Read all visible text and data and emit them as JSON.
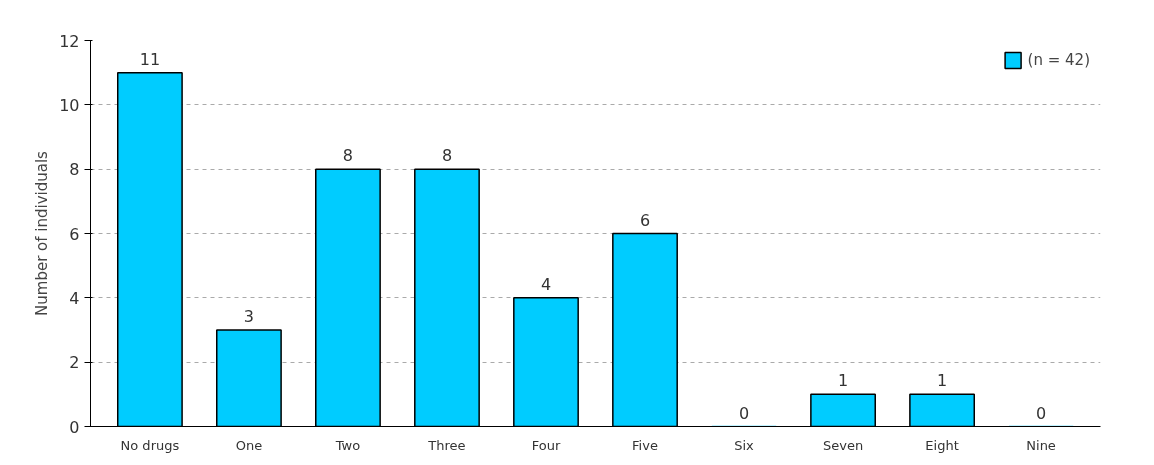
{
  "chart_data": {
    "type": "bar",
    "ylabel": "Number of individuals",
    "categories": [
      "No drugs",
      "One",
      "Two",
      "Three",
      "Four",
      "Five",
      "Six",
      "Seven",
      "Eight",
      "Nine"
    ],
    "series": [
      {
        "name": "(n = 42)",
        "color": "#00ccff",
        "values": [
          11,
          3,
          8,
          8,
          4,
          6,
          0,
          1,
          1,
          0
        ]
      }
    ],
    "ylim": [
      0,
      12
    ],
    "yticks": [
      0,
      2,
      4,
      6,
      8,
      10,
      12
    ],
    "grid": "y",
    "legend": "top right",
    "data_labels": true
  }
}
